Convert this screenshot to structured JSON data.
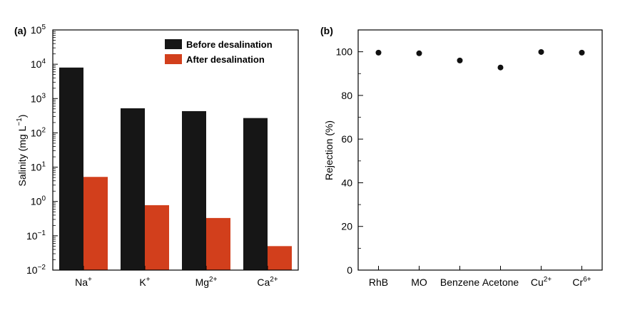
{
  "chart_data": [
    {
      "type": "bar",
      "panel_label": "(a)",
      "categories": [
        {
          "base": "Na",
          "sup": "+"
        },
        {
          "base": "K",
          "sup": "+"
        },
        {
          "base": "Mg",
          "sup": "2+"
        },
        {
          "base": "Ca",
          "sup": "2+"
        }
      ],
      "series": [
        {
          "name": "Before desalination",
          "color": "#161616",
          "values": [
            8000,
            520,
            430,
            270
          ]
        },
        {
          "name": "After desalination",
          "color": "#d23f1c",
          "values": [
            5.2,
            0.78,
            0.33,
            0.05
          ]
        }
      ],
      "ylabel": {
        "text": "Salinity (mg L",
        "sup": "−1",
        "suffix": ")"
      },
      "yscale": "log",
      "ylim": [
        0.01,
        100000
      ],
      "yticks": [
        {
          "base": "10",
          "sup": "−2"
        },
        {
          "base": "10",
          "sup": "−1"
        },
        {
          "base": "10",
          "sup": "0"
        },
        {
          "base": "10",
          "sup": "1"
        },
        {
          "base": "10",
          "sup": "2"
        },
        {
          "base": "10",
          "sup": "3"
        },
        {
          "base": "10",
          "sup": "4"
        },
        {
          "base": "10",
          "sup": "5"
        }
      ],
      "legend_position": "top-right",
      "grid": false
    },
    {
      "type": "scatter",
      "panel_label": "(b)",
      "categories": [
        {
          "base": "RhB",
          "sup": ""
        },
        {
          "base": "MO",
          "sup": ""
        },
        {
          "base": "Benzene",
          "sup": ""
        },
        {
          "base": "Acetone",
          "sup": ""
        },
        {
          "base": "Cu",
          "sup": "2+"
        },
        {
          "base": "Cr",
          "sup": "6+"
        }
      ],
      "values": [
        99.6,
        99.3,
        96.0,
        92.8,
        99.9,
        99.6
      ],
      "marker_color": "#111111",
      "ylabel": "Rejection (%)",
      "ylim": [
        0,
        110
      ],
      "yticks": [
        0,
        20,
        40,
        60,
        80,
        100
      ],
      "grid": false
    }
  ]
}
